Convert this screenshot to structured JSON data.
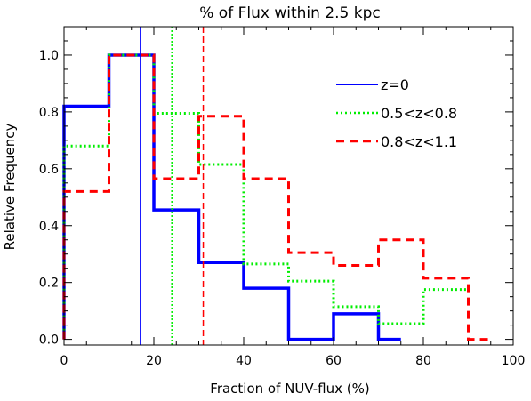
{
  "chart_data": {
    "type": "line",
    "title": "% of Flux within 2.5 kpc",
    "xlabel": "Fraction of NUV-flux (%)",
    "ylabel": "Relative Frequency",
    "xlim": [
      0,
      100
    ],
    "ylim": [
      -0.02,
      1.1
    ],
    "grid": false,
    "legend_position": "top-right",
    "x_ticks": [
      0,
      20,
      40,
      60,
      80,
      100
    ],
    "x_tick_labels": [
      "0",
      "20",
      "40",
      "60",
      "80",
      "100"
    ],
    "y_ticks": [
      0.0,
      0.2,
      0.4,
      0.6,
      0.8,
      1.0
    ],
    "y_tick_labels": [
      "0.0",
      "0.2",
      "0.4",
      "0.6",
      "0.8",
      "1.0"
    ],
    "bin_edges": [
      0,
      10,
      20,
      30,
      40,
      50,
      60,
      70,
      80,
      90,
      95
    ],
    "series": [
      {
        "name": "z=0",
        "color": "#0000ff",
        "dash": "solid",
        "step_edges": [
          0,
          10,
          20,
          30,
          40,
          50,
          60,
          70,
          75
        ],
        "values": [
          0.82,
          1.0,
          0.455,
          0.27,
          0.18,
          0.0,
          0.09,
          0.0
        ],
        "median": 17
      },
      {
        "name": "0.5<z<0.8",
        "color": "#00ee00",
        "dash": "dotted",
        "step_edges": [
          0,
          10,
          20,
          30,
          40,
          50,
          60,
          70,
          80,
          90
        ],
        "values": [
          0.68,
          1.0,
          0.795,
          0.615,
          0.265,
          0.205,
          0.115,
          0.055,
          0.175
        ],
        "median": 24
      },
      {
        "name": "0.8<z<1.1",
        "color": "#ff0000",
        "dash": "dashed",
        "step_edges": [
          0,
          10,
          20,
          30,
          40,
          50,
          60,
          70,
          80,
          90,
          95
        ],
        "values": [
          0.52,
          1.0,
          0.565,
          0.785,
          0.565,
          0.305,
          0.26,
          0.35,
          0.215,
          0.0
        ],
        "median": 31
      }
    ]
  }
}
